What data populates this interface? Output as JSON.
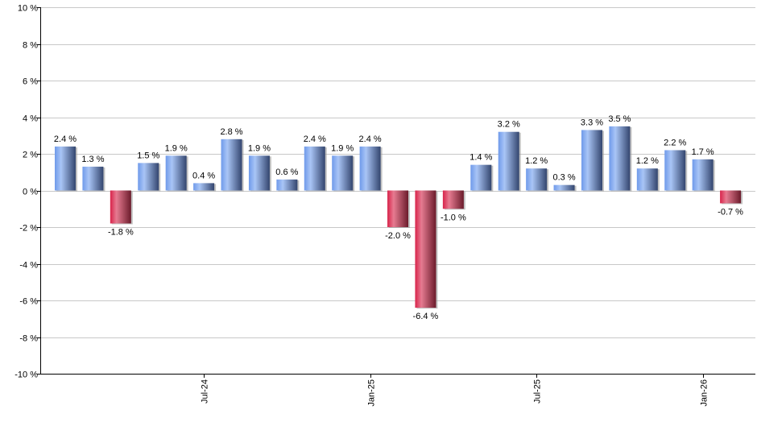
{
  "chart_data": {
    "type": "bar",
    "title": "",
    "xlabel": "",
    "ylabel": "",
    "ylim": [
      -10,
      10
    ],
    "y_ticks": [
      10,
      8,
      6,
      4,
      2,
      0,
      -2,
      -4,
      -6,
      -8,
      -10
    ],
    "y_tick_suffix": " %",
    "grid": true,
    "values": [
      2.4,
      1.3,
      -1.8,
      1.5,
      1.9,
      0.4,
      2.8,
      1.9,
      0.6,
      2.4,
      1.9,
      2.4,
      -2.0,
      -6.4,
      -1.0,
      1.4,
      3.2,
      1.2,
      0.3,
      3.3,
      3.5,
      1.2,
      2.2,
      1.7,
      -0.7
    ],
    "x_ticks": [
      {
        "label": "Jul-24",
        "bar": 5
      },
      {
        "label": "Jan-25",
        "bar": 11
      },
      {
        "label": "Jul-25",
        "bar": 17
      },
      {
        "label": "Jan-26",
        "bar": 23
      }
    ],
    "colors": {
      "positive": "#7aa3ea",
      "negative": "#d42a4c",
      "grid": "#c8c8c8"
    }
  }
}
